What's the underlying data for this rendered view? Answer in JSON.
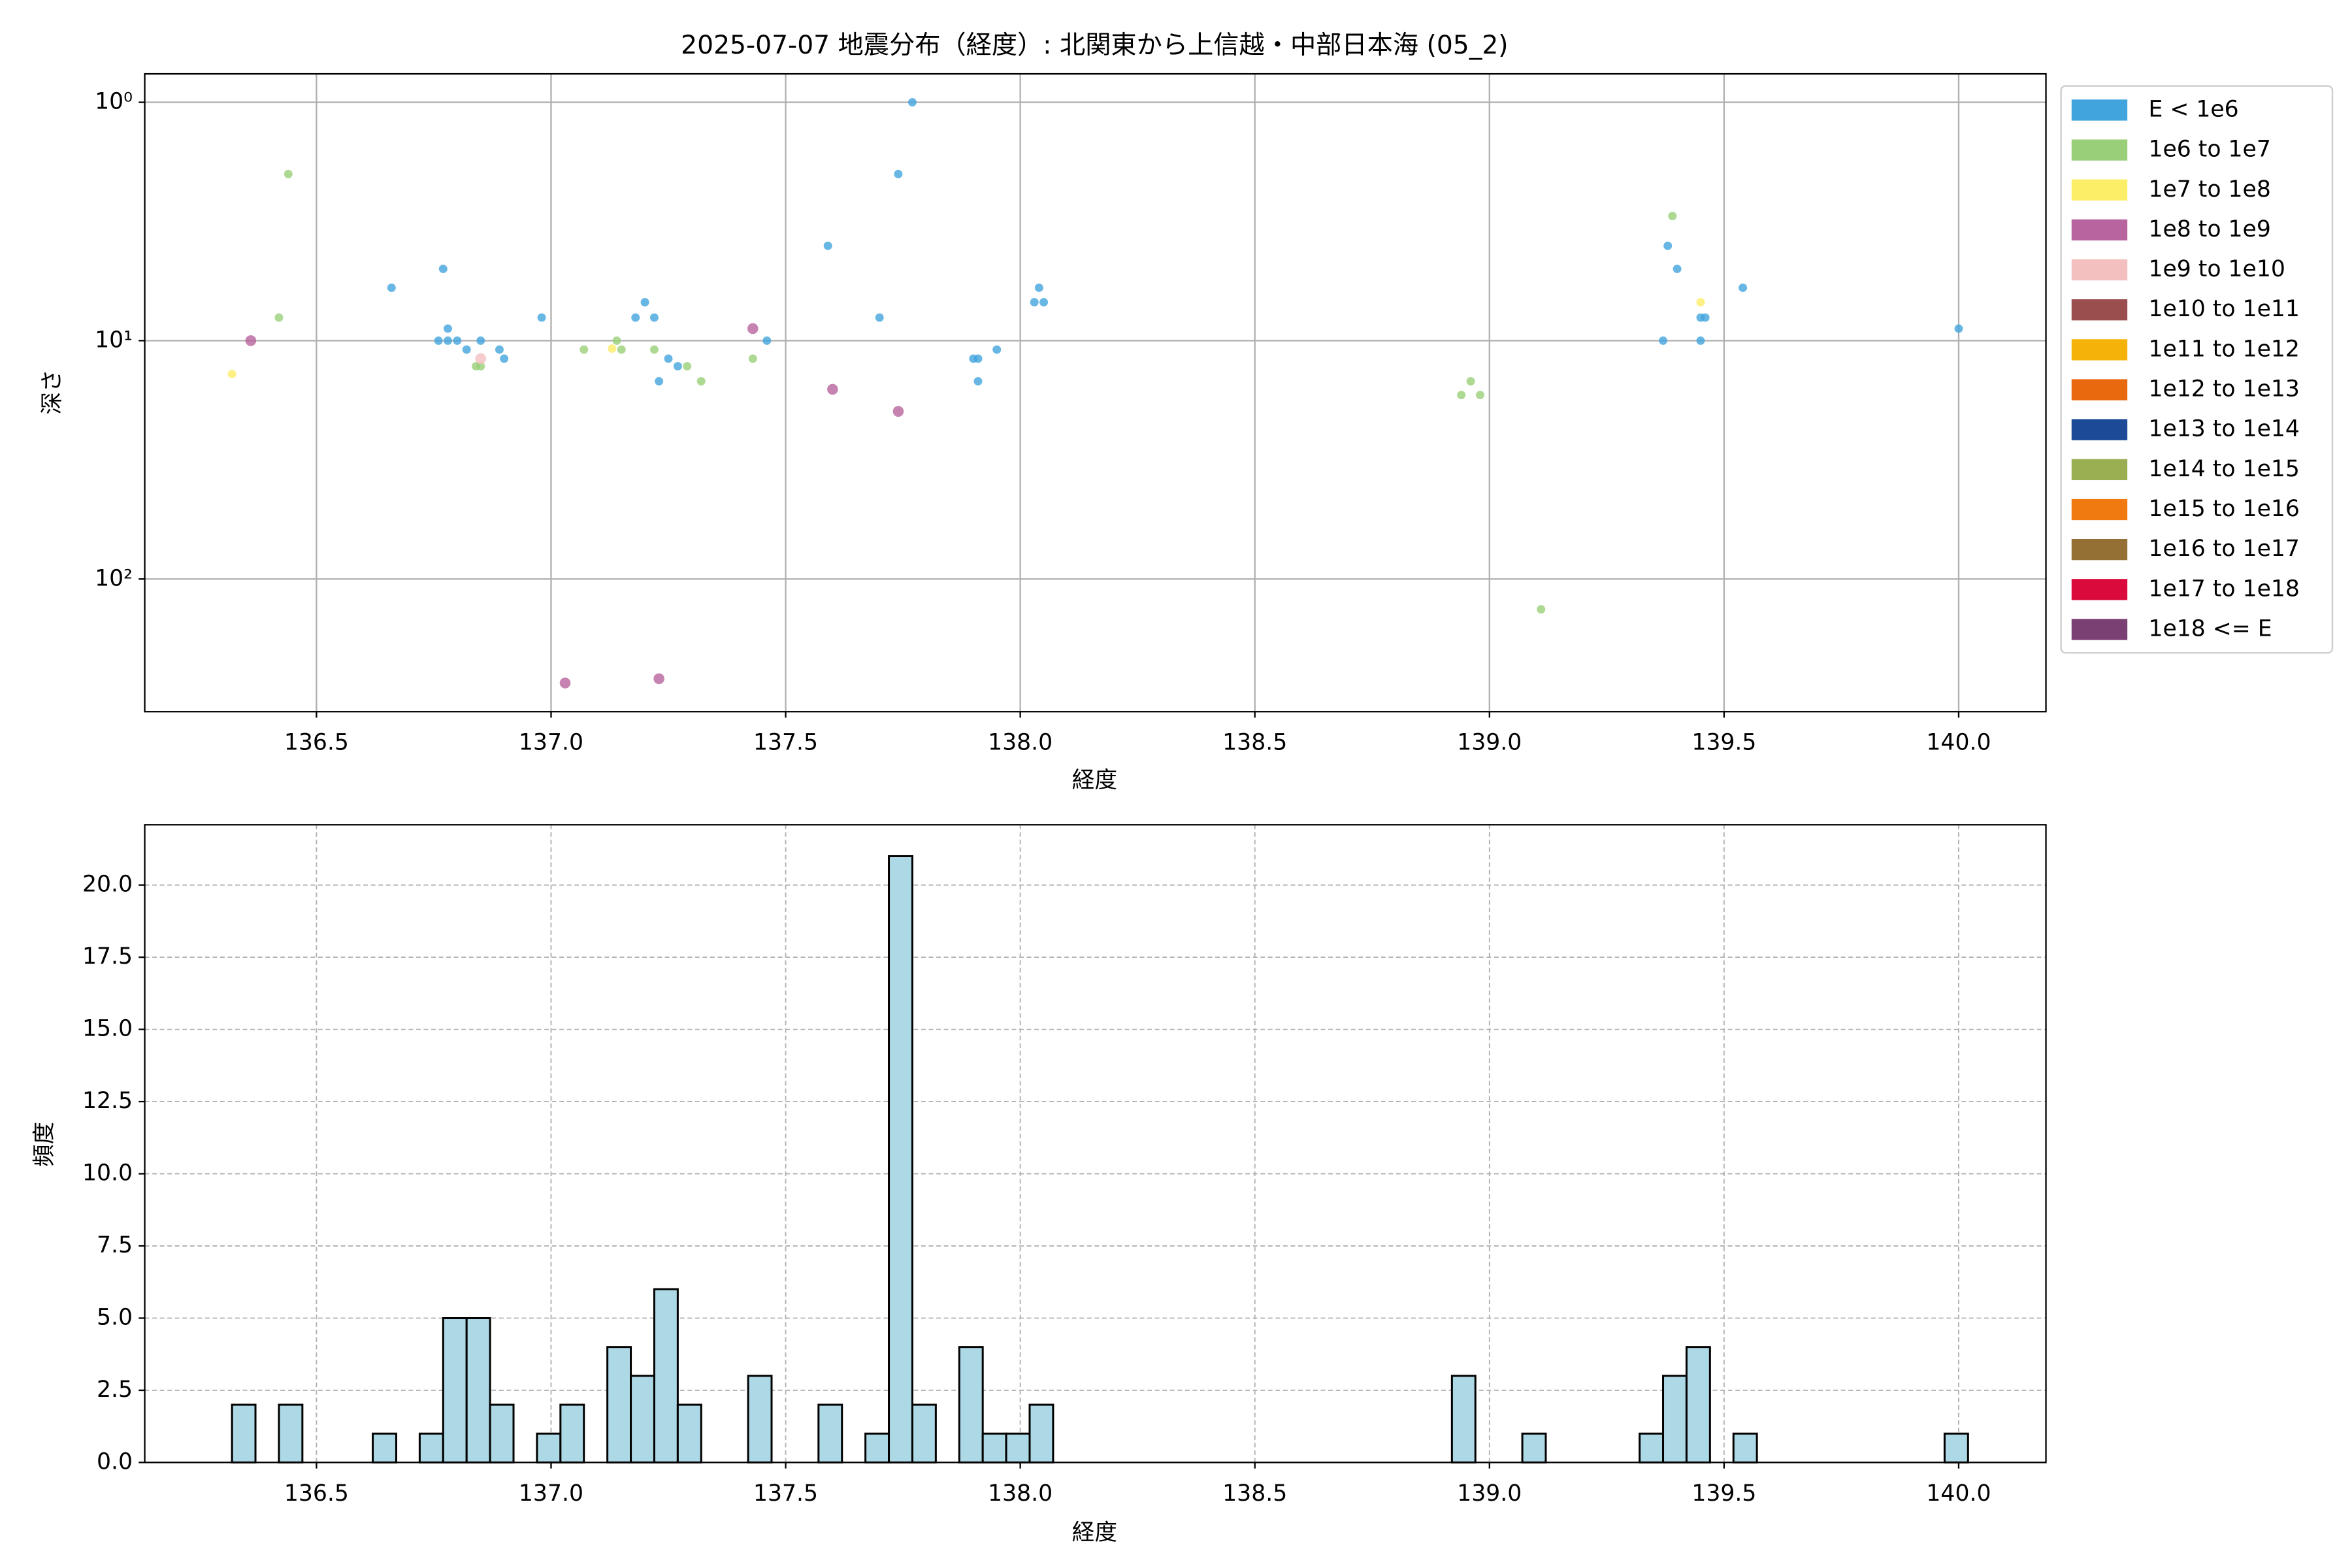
{
  "chart_data": [
    {
      "type": "scatter",
      "title": "2025-07-07 地震分布（経度）: 北関東から上信越・中部日本海 (05_2)",
      "xlabel": "経度",
      "ylabel": "深さ",
      "xlim": [
        136.134,
        140.186
      ],
      "ylim": [
        0.76,
        360
      ],
      "log_y": true,
      "y_inverted": true,
      "grid": true,
      "legend": "outside right",
      "xticks": [
        136.5,
        {
          "value": 137,
          "label": "137.0"
        },
        137.5,
        {
          "value": 138,
          "label": "138.0"
        },
        138.5,
        {
          "value": 139,
          "label": "139.0"
        },
        139.5,
        {
          "value": 140,
          "label": "140.0"
        }
      ],
      "yticks": [
        {
          "value": 1,
          "label": "10⁰"
        },
        {
          "value": 10,
          "label": "10¹"
        },
        {
          "value": 100,
          "label": "10²"
        }
      ],
      "series": [
        {
          "name": "E < 1e6",
          "color": "#41a4dd",
          "x": [
            136.66,
            136.77,
            136.78,
            136.76,
            136.78,
            136.8,
            136.82,
            136.85,
            136.89,
            136.9,
            136.98,
            137.18,
            137.2,
            137.22,
            137.23,
            137.25,
            137.27,
            137.46,
            137.59,
            137.7,
            137.74,
            137.77,
            137.9,
            137.91,
            137.91,
            137.95,
            138.03,
            138.04,
            138.05,
            139.38,
            139.4,
            139.37,
            139.45,
            139.46,
            139.45,
            139.54,
            140.0
          ],
          "y": [
            6.0,
            5.0,
            8.9,
            10,
            10,
            10,
            10.9,
            10,
            10.9,
            11.9,
            8.0,
            8.0,
            6.9,
            8.0,
            14.8,
            11.9,
            12.8,
            10,
            4.0,
            8.0,
            2.0,
            1.0,
            11.9,
            11.9,
            14.8,
            10.9,
            6.9,
            6.0,
            6.9,
            4.0,
            5.0,
            10,
            8.0,
            8.0,
            10,
            6.0,
            8.9
          ]
        },
        {
          "name": "1e6 to 1e7",
          "color": "#98cf78",
          "x": [
            136.44,
            136.42,
            136.84,
            136.85,
            137.07,
            137.14,
            137.15,
            137.22,
            137.29,
            137.32,
            137.43,
            139.39,
            138.94,
            138.96,
            138.98,
            139.11
          ],
          "y": [
            2.0,
            8.0,
            12.8,
            12.8,
            10.9,
            10,
            10.9,
            10.9,
            12.8,
            14.8,
            11.9,
            3.0,
            16.9,
            14.8,
            16.9,
            134
          ]
        },
        {
          "name": "1e7 to 1e8",
          "color": "#fdee68",
          "x": [
            136.32,
            137.13,
            139.45
          ],
          "y": [
            13.8,
            10.8,
            6.9
          ]
        },
        {
          "name": "1e8 to 1e9",
          "color": "#b8649e",
          "x": [
            136.36,
            137.03,
            137.23,
            137.43,
            137.6,
            137.74
          ],
          "y": [
            10,
            273,
            262,
            8.9,
            16,
            19.8
          ]
        },
        {
          "name": "1e9 to 1e10",
          "color": "#f4bfbf",
          "x": [
            136.85
          ],
          "y": [
            11.9
          ]
        },
        {
          "name": "1e10 to 1e11",
          "color": "#9a4e4e",
          "x": [],
          "y": []
        },
        {
          "name": "1e11 to 1e12",
          "color": "#f5b30a",
          "x": [],
          "y": []
        },
        {
          "name": "1e12 to 1e13",
          "color": "#e9690f",
          "x": [],
          "y": []
        },
        {
          "name": "1e13 to 1e14",
          "color": "#1d4a96",
          "x": [],
          "y": []
        },
        {
          "name": "1e14 to 1e15",
          "color": "#9aae52",
          "x": [],
          "y": []
        },
        {
          "name": "1e15 to 1e16",
          "color": "#f07a10",
          "x": [],
          "y": []
        },
        {
          "name": "1e16 to 1e17",
          "color": "#957035",
          "x": [],
          "y": []
        },
        {
          "name": "1e17 to 1e18",
          "color": "#db0a3c",
          "x": [],
          "y": []
        },
        {
          "name": "1e18 <= E",
          "color": "#7a3f73",
          "x": [],
          "y": []
        }
      ]
    },
    {
      "type": "histogram",
      "xlabel": "経度",
      "ylabel": "頻度",
      "xlim": [
        136.134,
        140.186
      ],
      "ylim": [
        0,
        22.09
      ],
      "grid": true,
      "grid_linestyle": "dashed",
      "color": "#add8e6",
      "edgecolor": "#000000",
      "xticks": [
        136.5,
        {
          "value": 137,
          "label": "137.0"
        },
        137.5,
        {
          "value": 138,
          "label": "138.0"
        },
        138.5,
        {
          "value": 139,
          "label": "139.0"
        },
        139.5,
        {
          "value": 140,
          "label": "140.0"
        }
      ],
      "yticks": [
        {
          "value": 0,
          "label": "0.0"
        },
        2.5,
        {
          "value": 5,
          "label": "5.0"
        },
        7.5,
        {
          "value": 10,
          "label": "10.0"
        },
        12.5,
        {
          "value": 15,
          "label": "15.0"
        },
        17.5,
        {
          "value": 20,
          "label": "20.0"
        }
      ],
      "bins": [
        136.32,
        136.37,
        136.42,
        136.47,
        136.52,
        136.57,
        136.62,
        136.67,
        136.72,
        136.77,
        136.82,
        136.87,
        136.92,
        136.97,
        137.02,
        137.07,
        137.12,
        137.17,
        137.22,
        137.27,
        137.32,
        137.37,
        137.42,
        137.47,
        137.52,
        137.57,
        137.62,
        137.67,
        137.72,
        137.77,
        137.82,
        137.87,
        137.92,
        137.97,
        138.02,
        138.07,
        138.12,
        138.17,
        138.22,
        138.27,
        138.32,
        138.37,
        138.42,
        138.47,
        138.52,
        138.57,
        138.62,
        138.67,
        138.72,
        138.77,
        138.82,
        138.87,
        138.92,
        138.97,
        139.02,
        139.07,
        139.12,
        139.17,
        139.22,
        139.27,
        139.32,
        139.37,
        139.42,
        139.47,
        139.52,
        139.57,
        139.62,
        139.67,
        139.72,
        139.77,
        139.82,
        139.87,
        139.92,
        139.97,
        140.02
      ],
      "counts": [
        2,
        0,
        2,
        0,
        0,
        0,
        1,
        0,
        1,
        5,
        5,
        2,
        0,
        1,
        2,
        0,
        4,
        3,
        6,
        2,
        0,
        0,
        3,
        0,
        0,
        2,
        0,
        1,
        21,
        2,
        0,
        4,
        1,
        1,
        2,
        0,
        0,
        0,
        0,
        0,
        0,
        0,
        0,
        0,
        0,
        0,
        0,
        0,
        0,
        0,
        0,
        0,
        3,
        0,
        0,
        1,
        0,
        0,
        0,
        0,
        1,
        3,
        4,
        0,
        1,
        0,
        0,
        0,
        0,
        0,
        0,
        0,
        0,
        1
      ]
    }
  ]
}
